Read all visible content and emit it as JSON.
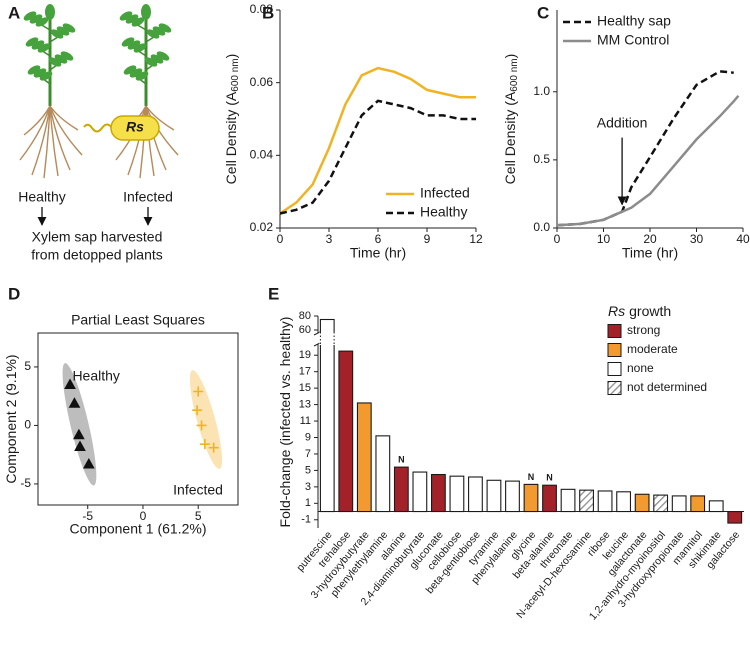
{
  "diagram": {
    "panel": "A",
    "left_label": "Healthy",
    "right_label": "Infected",
    "pathogen": "Rs",
    "caption": [
      "Xylem sap harvested",
      "from detopped plants"
    ]
  },
  "chart_data": [
    {
      "type": "line",
      "panel": "B",
      "xlabel": "Time (hr)",
      "ylabel": [
        "Cell Density (A",
        "600 nm",
        ")"
      ],
      "x": [
        0,
        1,
        2,
        3,
        4,
        5,
        6,
        7,
        8,
        9,
        10,
        11,
        12
      ],
      "xlim": [
        0,
        12
      ],
      "xticks": [
        0,
        3,
        6,
        9,
        12
      ],
      "ylim": [
        0.02,
        0.08
      ],
      "yticks": [
        0.02,
        0.04,
        0.06,
        0.08
      ],
      "legend": "lower right",
      "series": [
        {
          "name": "Infected",
          "color": "#f0b323",
          "style": "solid",
          "values": [
            0.024,
            0.027,
            0.032,
            0.042,
            0.054,
            0.062,
            0.064,
            0.063,
            0.061,
            0.058,
            0.057,
            0.056,
            0.056
          ]
        },
        {
          "name": "Healthy",
          "color": "#111111",
          "style": "dashed",
          "values": [
            0.024,
            0.025,
            0.027,
            0.033,
            0.042,
            0.051,
            0.055,
            0.054,
            0.053,
            0.051,
            0.051,
            0.05,
            0.05
          ]
        }
      ]
    },
    {
      "type": "line",
      "panel": "C",
      "xlabel": "Time (hr)",
      "ylabel": [
        "Cell Density (A",
        "600 nm",
        ")"
      ],
      "x": [
        0,
        5,
        10,
        14,
        16,
        20,
        25,
        30,
        35,
        38,
        39
      ],
      "xlim": [
        0,
        40
      ],
      "xticks": [
        0,
        10,
        20,
        30,
        40
      ],
      "ylim": [
        0,
        1.6
      ],
      "yticks": [
        {
          "value": 0,
          "label": "0.0"
        },
        {
          "value": 0.5,
          "label": "0.5"
        },
        {
          "value": 1,
          "label": "1.0"
        }
      ],
      "legend": "upper left",
      "annotations": [
        {
          "text": "Addition",
          "x": 14,
          "y": 0.15
        }
      ],
      "series": [
        {
          "name": "Healthy sap",
          "color": "#111111",
          "style": "dashed",
          "values": [
            0.02,
            0.03,
            0.06,
            0.12,
            0.3,
            0.52,
            0.8,
            1.05,
            1.15,
            1.14,
            null
          ]
        },
        {
          "name": "MM Control",
          "color": "#8c8c8c",
          "style": "solid",
          "values": [
            0.02,
            0.03,
            0.06,
            0.12,
            0.15,
            0.25,
            0.45,
            0.65,
            0.82,
            0.93,
            0.97
          ]
        }
      ]
    },
    {
      "type": "scatter",
      "panel": "D",
      "title": "Partial Least Squares",
      "frame": true,
      "xlabel": "Component 1 (61.2%)",
      "ylabel": [
        "Component 2 (9.1%)"
      ],
      "xlim": [
        -9.5,
        8.6
      ],
      "xticks": [
        -5,
        0,
        5
      ],
      "ylim": [
        -6.8,
        7.9
      ],
      "yticks": [
        -5,
        0,
        5
      ],
      "series": [
        {
          "name": "Healthy",
          "color": "#111111",
          "band_color": "#bdbdbd",
          "marker": "triangle",
          "x": [
            -6.6,
            -6.2,
            -5.8,
            -5.7,
            -4.9
          ],
          "values": [
            3.5,
            1.9,
            -0.8,
            -1.8,
            -3.3
          ]
        },
        {
          "name": "Infected",
          "color": "#f0b323",
          "band_color": "#fbe3b3",
          "marker": "plus",
          "x": [
            5.0,
            4.9,
            5.3,
            5.6,
            6.4
          ],
          "values": [
            2.9,
            1.3,
            0,
            -1.6,
            -1.9
          ]
        }
      ]
    },
    {
      "type": "bar",
      "panel": "E",
      "ylabel": [
        "Fold-change (infected vs. healthy)"
      ],
      "categories": [
        "putrescine",
        "trehalose",
        "3-hydroxybutyrate",
        "phenylethylamine",
        "alanine",
        "2,4-diaminobutyrate",
        "gluconate",
        "cellobiose",
        "beta-gentiobiose",
        "tyramine",
        "phenylalanine",
        "glycine",
        "beta-alanine",
        "threonate",
        "N-acetyl-D-hexosamine",
        "ribose",
        "leucine",
        "galactonate",
        "1,2-anhydro-myoinositol",
        "3-hydroxypropionate",
        "mannitol",
        "shikimate",
        "galactose"
      ],
      "ylim": [
        -2,
        80
      ],
      "y_break": [
        20,
        60
      ],
      "yticks": [
        -1,
        1,
        3,
        5,
        7,
        9,
        11,
        13,
        15,
        17,
        19,
        60,
        80
      ],
      "legend": "upper right",
      "legend_title": [
        "Rs",
        "growth"
      ],
      "bar_notes": [
        null,
        null,
        null,
        null,
        "N",
        null,
        null,
        null,
        null,
        null,
        null,
        "N",
        "N",
        null,
        null,
        null,
        null,
        null,
        null,
        null,
        null,
        null,
        null
      ],
      "series": [
        {
          "name": "strong",
          "color": "#a3222a",
          "values": [
            null,
            19.5,
            null,
            null,
            5.4,
            null,
            4.5,
            null,
            null,
            null,
            null,
            null,
            3.2,
            null,
            null,
            null,
            null,
            null,
            null,
            null,
            null,
            null,
            -1.4
          ]
        },
        {
          "name": "moderate",
          "color": "#f39a2f",
          "values": [
            null,
            null,
            13.2,
            null,
            null,
            null,
            null,
            null,
            null,
            null,
            null,
            3.3,
            null,
            null,
            null,
            null,
            null,
            2.1,
            null,
            null,
            1.9,
            null,
            null
          ]
        },
        {
          "name": "none",
          "color": "#ffffff",
          "values": [
            75,
            null,
            null,
            9.2,
            null,
            4.8,
            null,
            4.3,
            4.2,
            3.8,
            3.7,
            null,
            null,
            2.7,
            null,
            2.5,
            2.4,
            null,
            null,
            1.9,
            null,
            1.3,
            null
          ]
        },
        {
          "name": "not determined",
          "color": "#8a8a8a",
          "pattern": "hatch",
          "values": [
            null,
            null,
            null,
            null,
            null,
            null,
            null,
            null,
            null,
            null,
            null,
            null,
            null,
            null,
            2.6,
            null,
            null,
            null,
            2.0,
            null,
            null,
            null,
            null
          ]
        }
      ]
    }
  ]
}
